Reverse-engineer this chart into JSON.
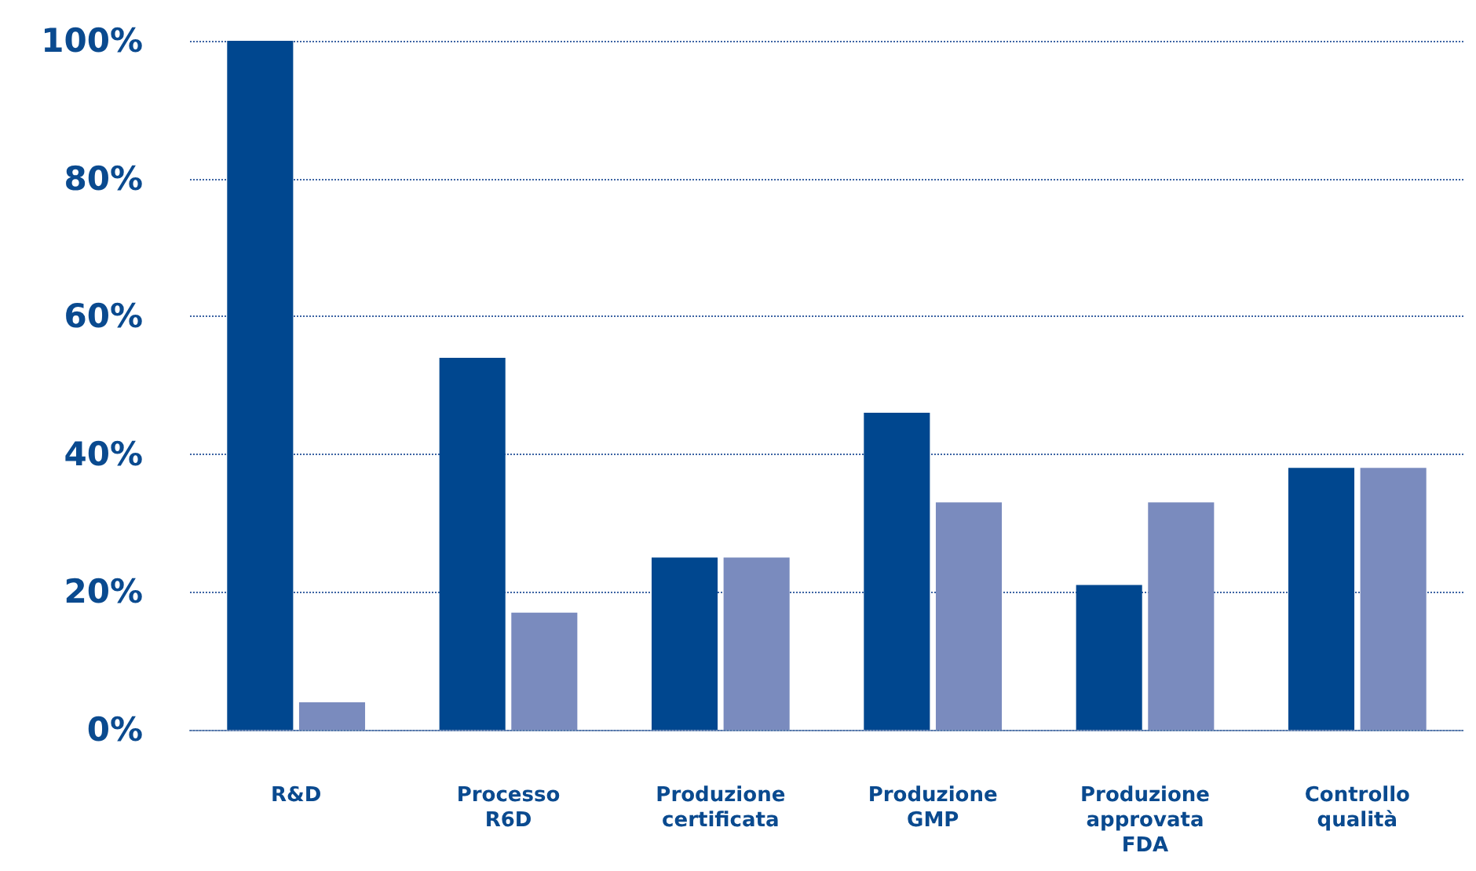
{
  "chart_data": {
    "type": "bar",
    "categories": [
      "R&D",
      "Processo R6D",
      "Produzione certificata",
      "Produzione GMP",
      "Produzione approvata FDA",
      "Controllo qualità"
    ],
    "series": [
      {
        "color": "#00478f",
        "values": [
          100,
          54,
          25,
          46,
          21,
          38
        ]
      },
      {
        "color": "#7a8bbe",
        "values": [
          4,
          17,
          25,
          33,
          33,
          38
        ]
      }
    ],
    "ylim": [
      0,
      100
    ],
    "yticks": [
      {
        "value": 0,
        "label": "0%"
      },
      {
        "value": 20,
        "label": "20%"
      },
      {
        "value": 40,
        "label": "40%"
      },
      {
        "value": 60,
        "label": "60%"
      },
      {
        "value": 80,
        "label": "80%"
      },
      {
        "value": 100,
        "label": "100%"
      }
    ],
    "grid": "y"
  }
}
